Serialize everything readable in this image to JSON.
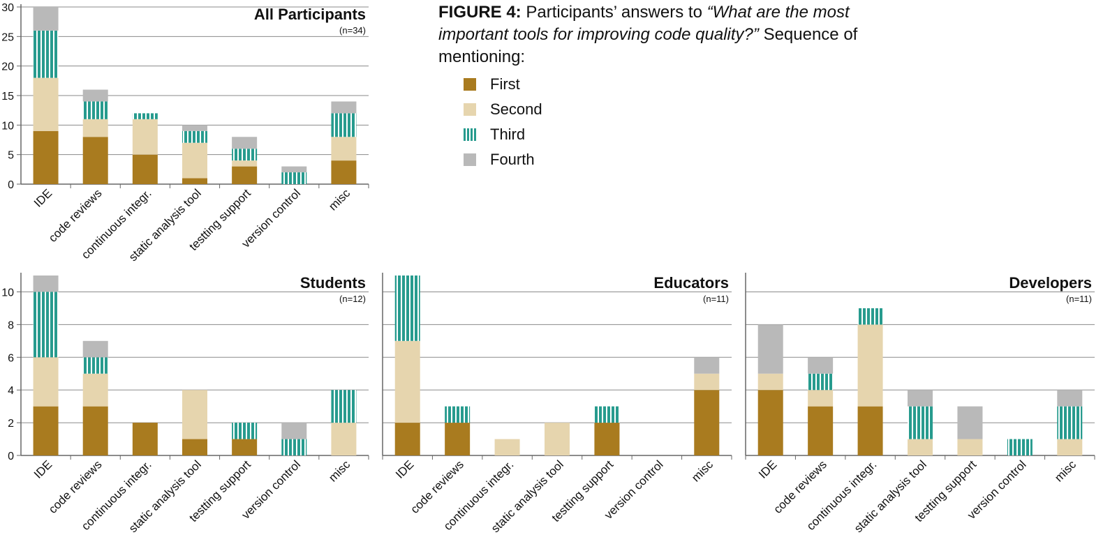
{
  "caption": {
    "figure_label": "FIGURE 4:",
    "text_before": "Participants’ answers  to",
    "question": "“What are the most important tools for improving code quality?”",
    "text_after": "Sequence of mentioning:"
  },
  "legend": [
    {
      "name": "First",
      "color": "#a97b1f",
      "pattern": "solid"
    },
    {
      "name": "Second",
      "color": "#e6d5ae",
      "pattern": "solid"
    },
    {
      "name": "Third",
      "color": "#279b8e",
      "pattern": "vertical-stripes"
    },
    {
      "name": "Fourth",
      "color": "#b9b9b9",
      "pattern": "solid"
    }
  ],
  "chart_data": [
    {
      "type": "bar",
      "stacked": true,
      "title": "All Participants",
      "subtitle": "(n=34)",
      "categories": [
        "IDE",
        "code reviews",
        "continuous integr.",
        "static analysis tool",
        "testting support",
        "version control",
        "misc"
      ],
      "ylim": [
        0,
        30
      ],
      "yticks": [
        0,
        5,
        10,
        15,
        20,
        25,
        30
      ],
      "grid": true,
      "series": [
        {
          "name": "First",
          "values": [
            9,
            8,
            5,
            1,
            3,
            0,
            4
          ]
        },
        {
          "name": "Second",
          "values": [
            9,
            3,
            6,
            6,
            1,
            0,
            4
          ]
        },
        {
          "name": "Third",
          "values": [
            8,
            3,
            1,
            2,
            2,
            2,
            4
          ]
        },
        {
          "name": "Fourth",
          "values": [
            4,
            2,
            0,
            1,
            2,
            1,
            2
          ]
        }
      ]
    },
    {
      "type": "bar",
      "stacked": true,
      "title": "Students",
      "subtitle": "(n=12)",
      "categories": [
        "IDE",
        "code reviews",
        "continuous integr.",
        "static analysis tool",
        "testting support",
        "version control",
        "misc"
      ],
      "ylim": [
        0,
        11
      ],
      "yticks": [
        0,
        2,
        4,
        6,
        8,
        10
      ],
      "grid": true,
      "series": [
        {
          "name": "First",
          "values": [
            3,
            3,
            2,
            1,
            1,
            0,
            0
          ]
        },
        {
          "name": "Second",
          "values": [
            3,
            2,
            0,
            3,
            0,
            0,
            2
          ]
        },
        {
          "name": "Third",
          "values": [
            4,
            1,
            0,
            0,
            1,
            1,
            2
          ]
        },
        {
          "name": "Fourth",
          "values": [
            1,
            1,
            0,
            0,
            0,
            1,
            0
          ]
        }
      ]
    },
    {
      "type": "bar",
      "stacked": true,
      "title": "Educators",
      "subtitle": "(n=11)",
      "categories": [
        "IDE",
        "code reviews",
        "continuous integr.",
        "static analysis tool",
        "testting support",
        "version control",
        "misc"
      ],
      "ylim": [
        0,
        11
      ],
      "yticks": [
        0,
        2,
        4,
        6,
        8,
        10
      ],
      "grid": true,
      "series": [
        {
          "name": "First",
          "values": [
            2,
            2,
            0,
            0,
            2,
            0,
            4
          ]
        },
        {
          "name": "Second",
          "values": [
            5,
            0,
            1,
            2,
            0,
            0,
            1
          ]
        },
        {
          "name": "Third",
          "values": [
            4,
            1,
            0,
            0,
            1,
            0,
            0
          ]
        },
        {
          "name": "Fourth",
          "values": [
            0,
            0,
            0,
            0,
            0,
            0,
            1
          ]
        }
      ]
    },
    {
      "type": "bar",
      "stacked": true,
      "title": "Developers",
      "subtitle": "(n=11)",
      "categories": [
        "IDE",
        "code reviews",
        "continuous integr.",
        "static analysis tool",
        "testting support",
        "version control",
        "misc"
      ],
      "ylim": [
        0,
        11
      ],
      "yticks": [
        0,
        2,
        4,
        6,
        8,
        10
      ],
      "grid": true,
      "series": [
        {
          "name": "First",
          "values": [
            4,
            3,
            3,
            0,
            0,
            0,
            0
          ]
        },
        {
          "name": "Second",
          "values": [
            1,
            1,
            5,
            1,
            1,
            0,
            1
          ]
        },
        {
          "name": "Third",
          "values": [
            0,
            1,
            1,
            2,
            0,
            1,
            2
          ]
        },
        {
          "name": "Fourth",
          "values": [
            3,
            1,
            0,
            1,
            2,
            0,
            1
          ]
        }
      ]
    }
  ]
}
